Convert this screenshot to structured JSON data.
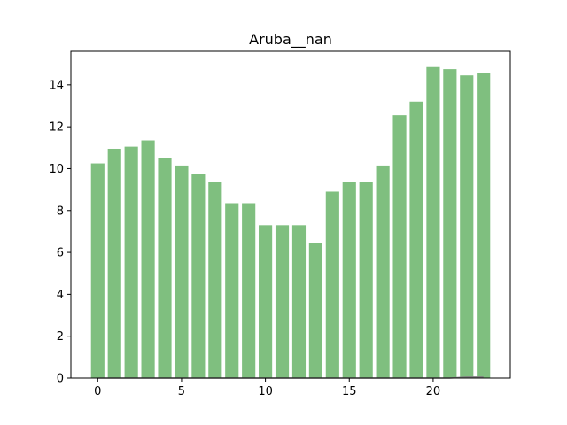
{
  "chart_data": {
    "type": "bar",
    "title": "Aruba__nan",
    "xlabel": "",
    "ylabel": "",
    "x": [
      0,
      1,
      2,
      3,
      4,
      5,
      6,
      7,
      8,
      9,
      10,
      11,
      12,
      13,
      14,
      15,
      16,
      17,
      18,
      19,
      20,
      21,
      22,
      23
    ],
    "values": [
      10.25,
      10.95,
      11.05,
      11.35,
      10.5,
      10.15,
      9.75,
      9.35,
      8.35,
      8.35,
      7.3,
      7.3,
      7.3,
      6.45,
      8.9,
      9.35,
      9.35,
      10.15,
      12.55,
      13.2,
      14.85,
      14.75,
      14.45,
      14.55
    ],
    "line_values": [
      0,
      0,
      0,
      0,
      0,
      0,
      0,
      0,
      0,
      0,
      0,
      0,
      0,
      0,
      0,
      0,
      0,
      0,
      0,
      0,
      0,
      0,
      0.05,
      0.05
    ],
    "xlim": [
      -1.6,
      24.6
    ],
    "ylim": [
      0,
      15.6
    ],
    "x_ticks": [
      0,
      5,
      10,
      15,
      20
    ],
    "y_ticks": [
      0,
      2,
      4,
      6,
      8,
      10,
      12,
      14
    ],
    "x_tick_labels": [
      "0",
      "5",
      "10",
      "15",
      "20"
    ],
    "y_tick_labels": [
      "0",
      "2",
      "4",
      "6",
      "8",
      "10",
      "12",
      "14"
    ],
    "bar_color": "#7fbf7f",
    "line_color": "#808080",
    "grid": false,
    "legend": "none"
  }
}
